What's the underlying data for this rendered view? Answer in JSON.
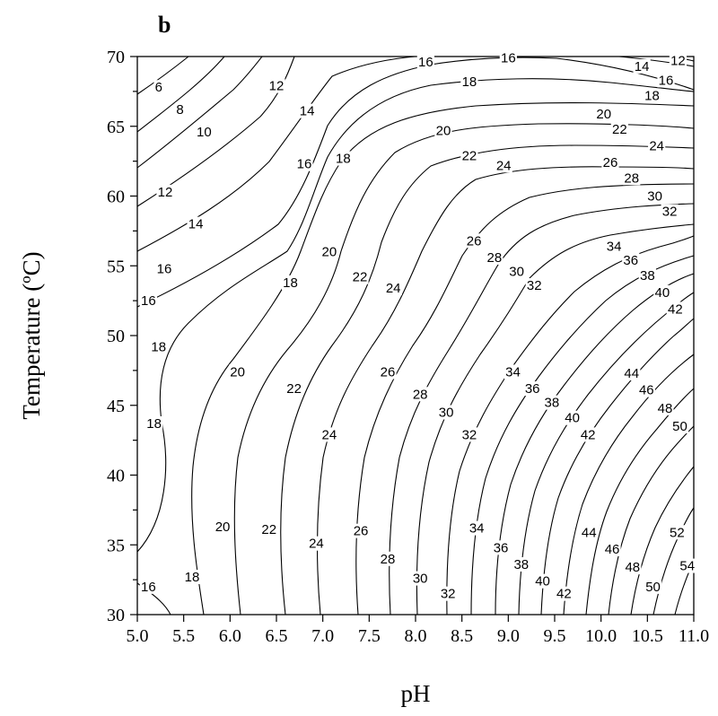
{
  "chart_data": {
    "type": "contour",
    "panel_label": "b",
    "xlabel": "pH",
    "ylabel": "Temperature (ºC)",
    "xlim": [
      5.0,
      11.0
    ],
    "ylim": [
      30,
      70
    ],
    "x_ticks": [
      "5.0",
      "5.5",
      "6.0",
      "6.5",
      "7.0",
      "7.5",
      "8.0",
      "8.5",
      "9.0",
      "9.5",
      "10.0",
      "10.5",
      "11.0"
    ],
    "y_ticks": [
      "30",
      "35",
      "40",
      "45",
      "50",
      "55",
      "60",
      "65",
      "70"
    ],
    "grid": false,
    "levels": [
      6,
      8,
      10,
      12,
      14,
      16,
      18,
      20,
      22,
      24,
      26,
      28,
      30,
      32,
      34,
      36,
      38,
      40,
      42,
      44,
      46,
      48,
      50,
      52,
      54
    ],
    "contour_labels": [
      {
        "text": "6",
        "x": 5.23,
        "y": 67.8
      },
      {
        "text": "8",
        "x": 5.46,
        "y": 66.2
      },
      {
        "text": "10",
        "x": 5.72,
        "y": 64.6
      },
      {
        "text": "12",
        "x": 5.3,
        "y": 60.3
      },
      {
        "text": "14",
        "x": 5.63,
        "y": 58.0
      },
      {
        "text": "16",
        "x": 5.29,
        "y": 54.8
      },
      {
        "text": "16",
        "x": 5.12,
        "y": 52.5
      },
      {
        "text": "18",
        "x": 5.23,
        "y": 49.2
      },
      {
        "text": "18",
        "x": 5.18,
        "y": 43.7
      },
      {
        "text": "12",
        "x": 6.5,
        "y": 67.9
      },
      {
        "text": "14",
        "x": 6.83,
        "y": 66.1
      },
      {
        "text": "16",
        "x": 6.8,
        "y": 62.3
      },
      {
        "text": "18",
        "x": 6.65,
        "y": 53.8
      },
      {
        "text": "16",
        "x": 8.11,
        "y": 69.6
      },
      {
        "text": "16",
        "x": 9.0,
        "y": 69.9
      },
      {
        "text": "18",
        "x": 7.22,
        "y": 62.7
      },
      {
        "text": "20",
        "x": 8.3,
        "y": 64.7
      },
      {
        "text": "18",
        "x": 8.58,
        "y": 68.2
      },
      {
        "text": "20",
        "x": 7.07,
        "y": 56.0
      },
      {
        "text": "22",
        "x": 7.4,
        "y": 54.2
      },
      {
        "text": "22",
        "x": 8.58,
        "y": 62.9
      },
      {
        "text": "24",
        "x": 8.95,
        "y": 62.2
      },
      {
        "text": "24",
        "x": 7.76,
        "y": 53.4
      },
      {
        "text": "26",
        "x": 8.63,
        "y": 56.8
      },
      {
        "text": "28",
        "x": 8.85,
        "y": 55.6
      },
      {
        "text": "30",
        "x": 9.09,
        "y": 54.6
      },
      {
        "text": "32",
        "x": 9.28,
        "y": 53.6
      },
      {
        "text": "20",
        "x": 6.08,
        "y": 47.4
      },
      {
        "text": "22",
        "x": 6.69,
        "y": 46.2
      },
      {
        "text": "24",
        "x": 7.07,
        "y": 42.9
      },
      {
        "text": "26",
        "x": 7.7,
        "y": 47.4
      },
      {
        "text": "28",
        "x": 8.05,
        "y": 45.8
      },
      {
        "text": "30",
        "x": 8.33,
        "y": 44.5
      },
      {
        "text": "32",
        "x": 8.58,
        "y": 42.9
      },
      {
        "text": "34",
        "x": 9.05,
        "y": 47.4
      },
      {
        "text": "36",
        "x": 9.26,
        "y": 46.2
      },
      {
        "text": "38",
        "x": 9.47,
        "y": 45.2
      },
      {
        "text": "40",
        "x": 9.69,
        "y": 44.1
      },
      {
        "text": "42",
        "x": 9.86,
        "y": 42.9
      },
      {
        "text": "20",
        "x": 5.92,
        "y": 36.3
      },
      {
        "text": "22",
        "x": 6.42,
        "y": 36.1
      },
      {
        "text": "24",
        "x": 6.93,
        "y": 35.1
      },
      {
        "text": "26",
        "x": 7.41,
        "y": 36.0
      },
      {
        "text": "28",
        "x": 7.7,
        "y": 34.0
      },
      {
        "text": "30",
        "x": 8.05,
        "y": 32.6
      },
      {
        "text": "32",
        "x": 8.35,
        "y": 31.5
      },
      {
        "text": "34",
        "x": 8.66,
        "y": 36.2
      },
      {
        "text": "36",
        "x": 8.92,
        "y": 34.8
      },
      {
        "text": "38",
        "x": 9.14,
        "y": 33.6
      },
      {
        "text": "40",
        "x": 9.37,
        "y": 32.4
      },
      {
        "text": "42",
        "x": 9.6,
        "y": 31.5
      },
      {
        "text": "16",
        "x": 5.12,
        "y": 32.0
      },
      {
        "text": "18",
        "x": 5.59,
        "y": 32.7
      },
      {
        "text": "14",
        "x": 10.44,
        "y": 69.3
      },
      {
        "text": "12",
        "x": 10.83,
        "y": 69.7
      },
      {
        "text": "16",
        "x": 10.7,
        "y": 68.3
      },
      {
        "text": "18",
        "x": 10.55,
        "y": 67.2
      },
      {
        "text": "20",
        "x": 10.03,
        "y": 65.9
      },
      {
        "text": "22",
        "x": 10.2,
        "y": 64.8
      },
      {
        "text": "24",
        "x": 10.6,
        "y": 63.6
      },
      {
        "text": "26",
        "x": 10.1,
        "y": 62.4
      },
      {
        "text": "28",
        "x": 10.33,
        "y": 61.3
      },
      {
        "text": "30",
        "x": 10.58,
        "y": 60.0
      },
      {
        "text": "32",
        "x": 10.74,
        "y": 58.9
      },
      {
        "text": "34",
        "x": 10.14,
        "y": 56.4
      },
      {
        "text": "36",
        "x": 10.32,
        "y": 55.4
      },
      {
        "text": "38",
        "x": 10.5,
        "y": 54.3
      },
      {
        "text": "40",
        "x": 10.66,
        "y": 53.1
      },
      {
        "text": "42",
        "x": 10.8,
        "y": 51.9
      },
      {
        "text": "44",
        "x": 10.33,
        "y": 47.3
      },
      {
        "text": "46",
        "x": 10.49,
        "y": 46.1
      },
      {
        "text": "48",
        "x": 10.69,
        "y": 44.8
      },
      {
        "text": "50",
        "x": 10.85,
        "y": 43.5
      },
      {
        "text": "44",
        "x": 9.87,
        "y": 35.9
      },
      {
        "text": "46",
        "x": 10.12,
        "y": 34.7
      },
      {
        "text": "48",
        "x": 10.34,
        "y": 33.4
      },
      {
        "text": "50",
        "x": 10.56,
        "y": 32.0
      },
      {
        "text": "52",
        "x": 10.82,
        "y": 35.9
      },
      {
        "text": "54",
        "x": 10.93,
        "y": 33.5
      }
    ]
  }
}
